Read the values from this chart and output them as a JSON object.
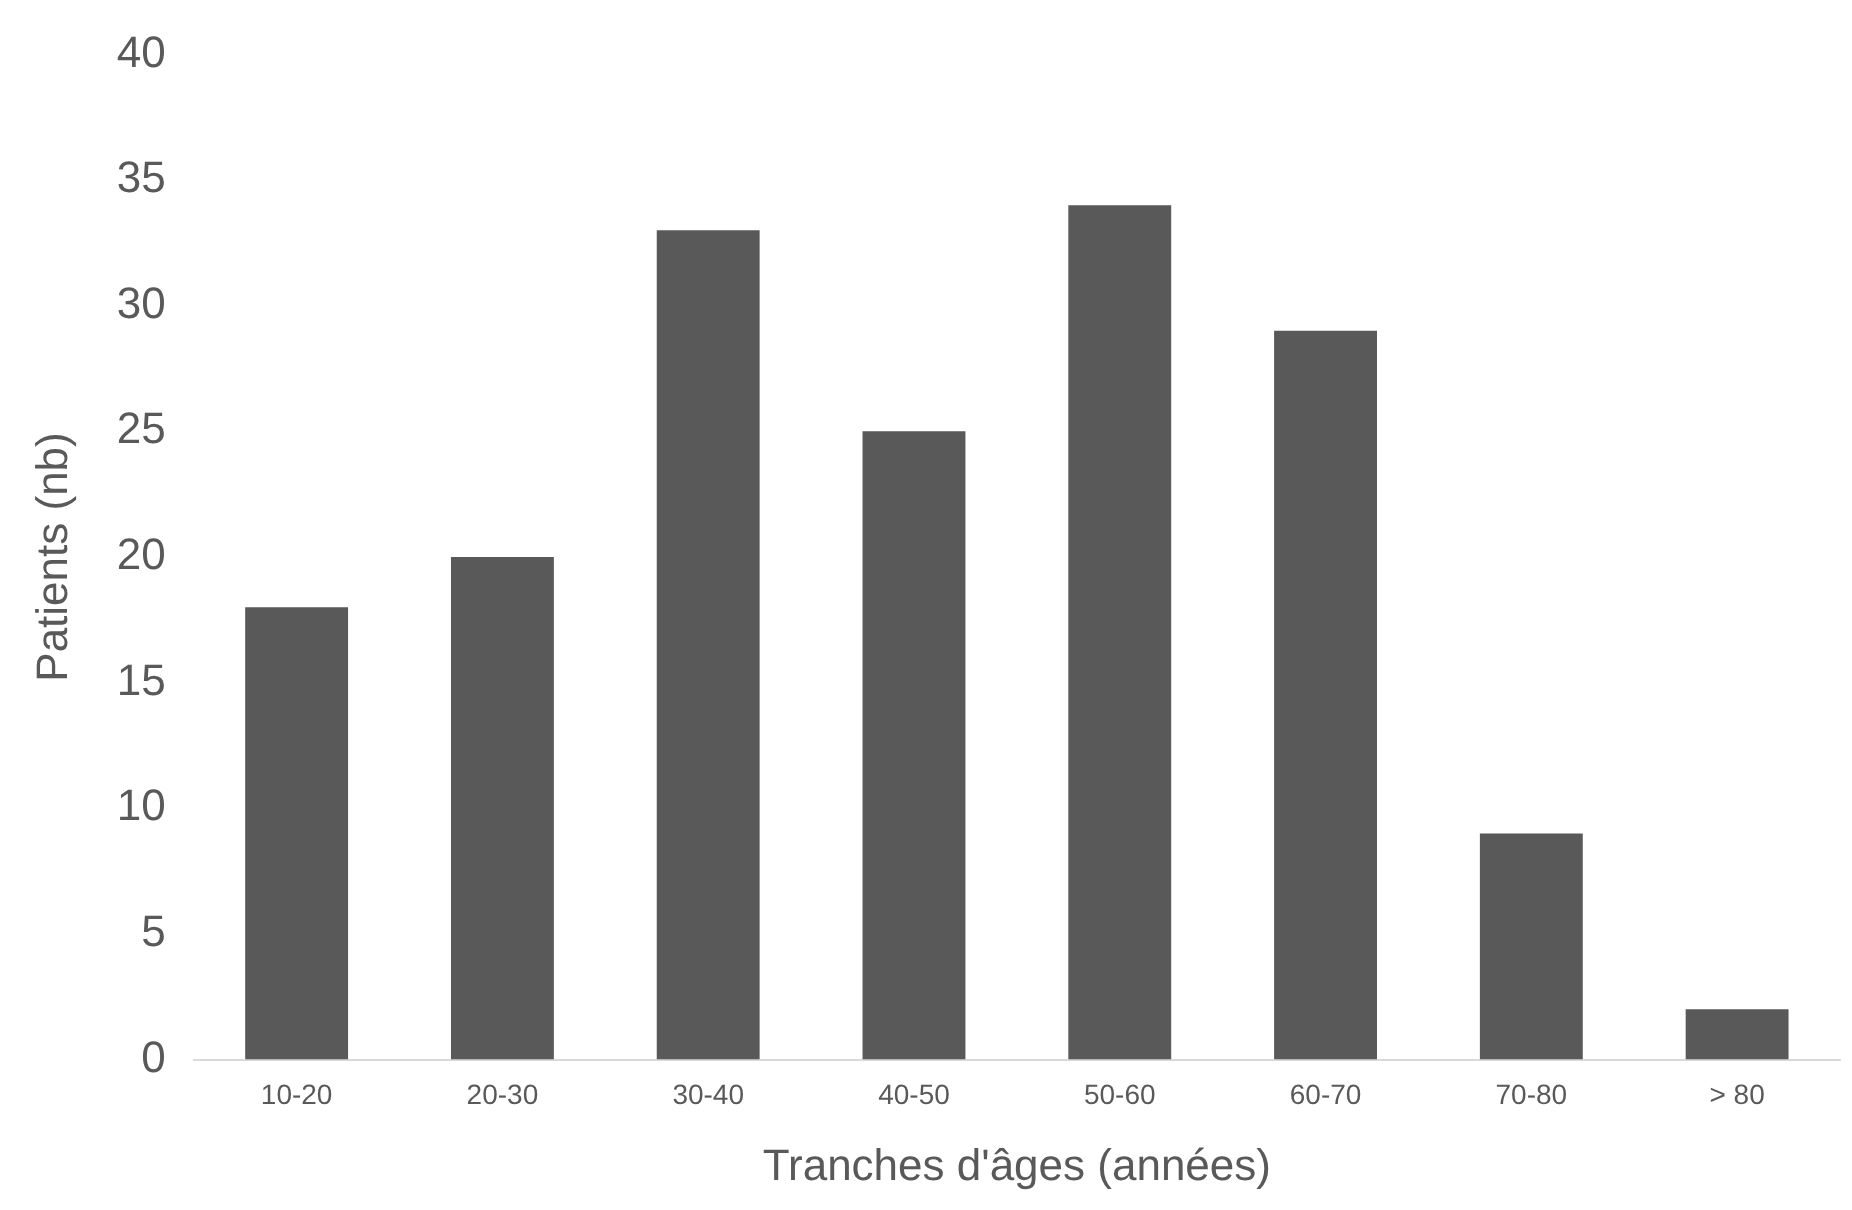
{
  "chart_data": {
    "type": "bar",
    "xlabel": "Tranches d'âges (années)",
    "ylabel": "Patients (nb)",
    "categories": [
      "10-20",
      "20-30",
      "30-40",
      "40-50",
      "50-60",
      "60-70",
      "70-80",
      "> 80"
    ],
    "values": [
      18,
      20,
      33,
      25,
      34,
      29,
      9,
      2
    ],
    "color": "#595959",
    "ylim": [
      0,
      40
    ],
    "yticks": [
      0,
      5,
      10,
      15,
      20,
      25,
      30,
      35,
      40
    ],
    "grid": false,
    "legend": false
  }
}
